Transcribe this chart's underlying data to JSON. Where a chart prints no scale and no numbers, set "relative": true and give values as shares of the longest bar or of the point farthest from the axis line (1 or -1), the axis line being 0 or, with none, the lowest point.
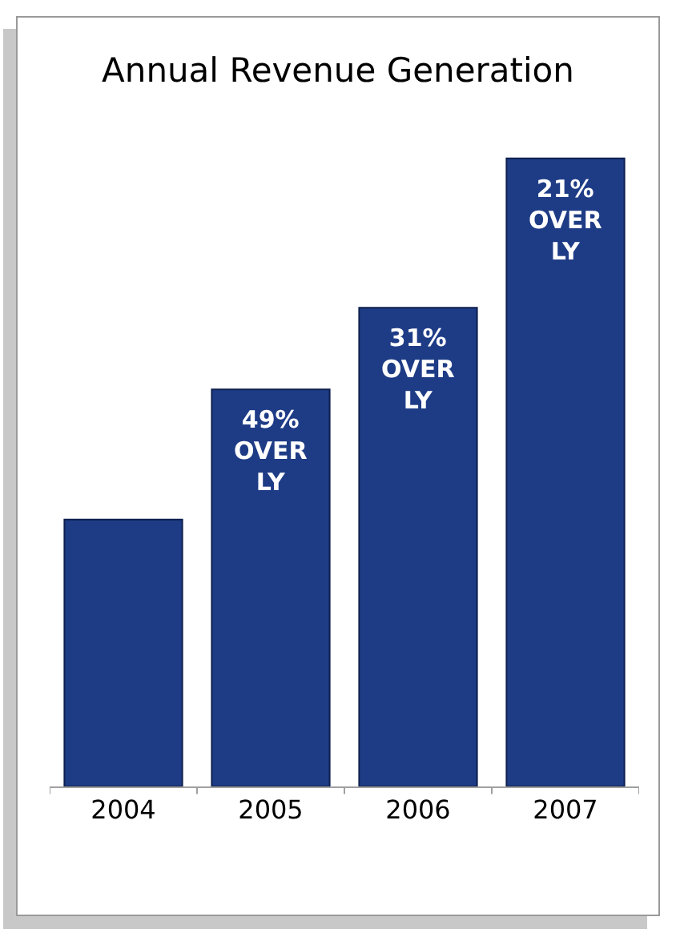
{
  "chart_data": {
    "type": "bar",
    "title": "Annual Revenue Generation",
    "categories": [
      "2004",
      "2005",
      "2006",
      "2007"
    ],
    "values": [
      0.425,
      0.632,
      0.762,
      1
    ],
    "color": "#1e3c86",
    "relative": true,
    "annotations": [
      {
        "text": "49% OVER LY",
        "x": "2005",
        "y": 0.632
      },
      {
        "text": "31% OVER LY",
        "x": "2006",
        "y": 0.762
      },
      {
        "text": "21% OVER LY",
        "x": "2007",
        "y": 1
      }
    ],
    "grid": false,
    "legend": false
  }
}
